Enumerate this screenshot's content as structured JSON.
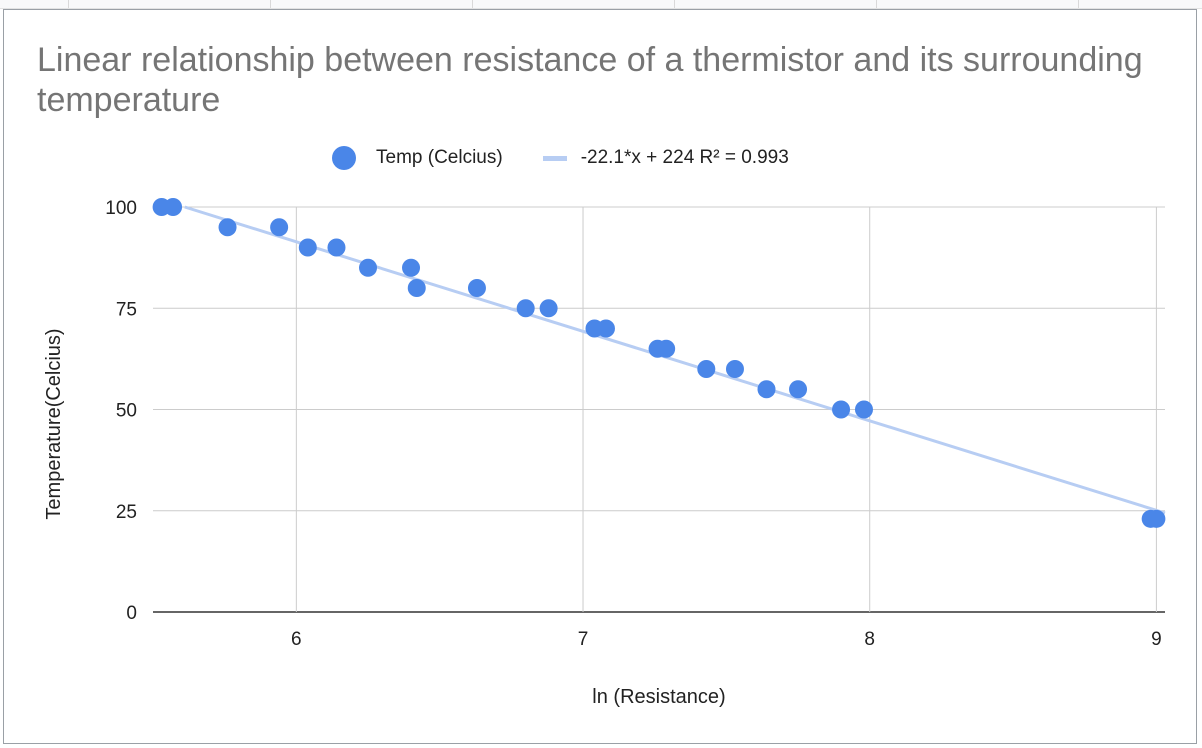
{
  "chart_data": {
    "type": "scatter",
    "title": "Linear relationship between resistance of a thermistor and its surrounding temperature",
    "xlabel": "ln (Resistance)",
    "ylabel": "Temperature(Celcius)",
    "xlim": [
      5.5,
      9.03
    ],
    "ylim": [
      0,
      100
    ],
    "x_ticks": [
      6,
      7,
      8,
      9
    ],
    "y_ticks": [
      0,
      25,
      50,
      75,
      100
    ],
    "grid": true,
    "legend_position": "top",
    "series": [
      {
        "name": "Temp (Celcius)",
        "color": "#4a86e8",
        "points": [
          {
            "x": 5.53,
            "y": 100
          },
          {
            "x": 5.57,
            "y": 100
          },
          {
            "x": 5.76,
            "y": 95
          },
          {
            "x": 5.94,
            "y": 95
          },
          {
            "x": 6.04,
            "y": 90
          },
          {
            "x": 6.14,
            "y": 90
          },
          {
            "x": 6.25,
            "y": 85
          },
          {
            "x": 6.4,
            "y": 85
          },
          {
            "x": 6.42,
            "y": 80
          },
          {
            "x": 6.63,
            "y": 80
          },
          {
            "x": 6.8,
            "y": 75
          },
          {
            "x": 6.88,
            "y": 75
          },
          {
            "x": 7.04,
            "y": 70
          },
          {
            "x": 7.08,
            "y": 70
          },
          {
            "x": 7.26,
            "y": 65
          },
          {
            "x": 7.29,
            "y": 65
          },
          {
            "x": 7.43,
            "y": 60
          },
          {
            "x": 7.53,
            "y": 60
          },
          {
            "x": 7.64,
            "y": 55
          },
          {
            "x": 7.75,
            "y": 55
          },
          {
            "x": 7.9,
            "y": 50
          },
          {
            "x": 7.98,
            "y": 50
          },
          {
            "x": 8.98,
            "y": 23
          },
          {
            "x": 9.0,
            "y": 23
          }
        ]
      }
    ],
    "trendline": {
      "name": "-22.1*x + 224 R² = 0.993",
      "slope": -22.1,
      "intercept": 224,
      "color": "#b7cdf3"
    }
  }
}
